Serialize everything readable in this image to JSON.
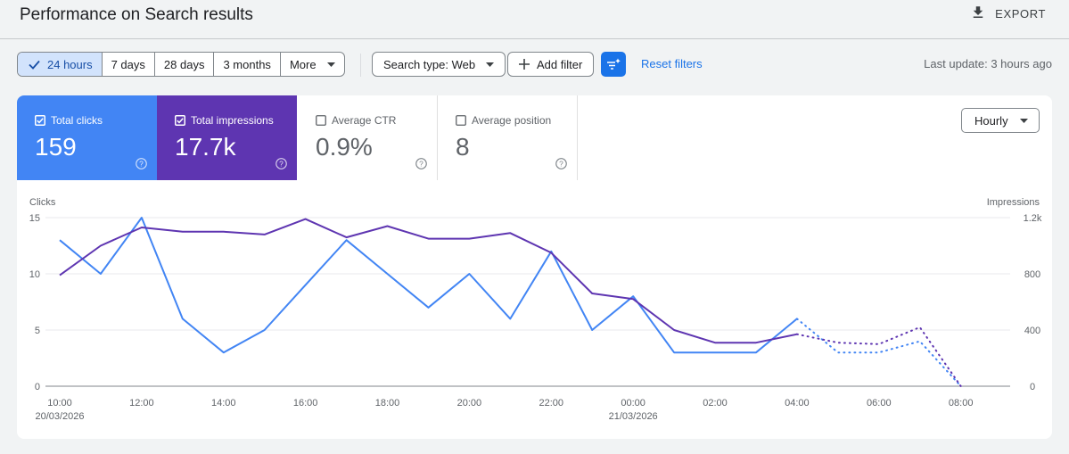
{
  "header": {
    "title": "Performance on Search results",
    "export_label": "EXPORT",
    "export_icon": "download-icon"
  },
  "toolbar": {
    "date_ranges": [
      "24 hours",
      "7 days",
      "28 days",
      "3 months",
      "More"
    ],
    "active_range": "24 hours",
    "search_type_label": "Search type: Web",
    "add_filter_label": "Add filter",
    "reset_filters_label": "Reset filters",
    "last_update": "Last update: 3 hours ago"
  },
  "metrics": {
    "clicks": {
      "label": "Total clicks",
      "value": "159",
      "checked": true,
      "color": "#4285f4"
    },
    "impressions": {
      "label": "Total impressions",
      "value": "17.7k",
      "checked": true,
      "color": "#5e35b1"
    },
    "ctr": {
      "label": "Average CTR",
      "value": "0.9%",
      "checked": false
    },
    "position": {
      "label": "Average position",
      "value": "8",
      "checked": false
    }
  },
  "granularity": "Hourly",
  "chart_data": {
    "type": "line",
    "left_axis": {
      "label": "Clicks",
      "ticks": [
        "0",
        "5",
        "10",
        "15"
      ],
      "range": [
        0,
        15
      ]
    },
    "right_axis": {
      "label": "Impressions",
      "ticks": [
        "0",
        "400",
        "800",
        "1.2k"
      ],
      "range": [
        0,
        1200
      ]
    },
    "x_labels": [
      "10:00",
      "12:00",
      "14:00",
      "16:00",
      "18:00",
      "20:00",
      "22:00",
      "00:00",
      "02:00",
      "04:00",
      "06:00",
      "08:00"
    ],
    "date_labels": [
      {
        "hour_index": 0,
        "text": "20/03/2026"
      },
      {
        "hour_index": 14,
        "text": "21/03/2026"
      }
    ],
    "grid": true,
    "series": [
      {
        "name": "Clicks",
        "axis": "left",
        "color": "#4285f4",
        "values": [
          13,
          10,
          15,
          6,
          3,
          5,
          9,
          13,
          10,
          7,
          10,
          6,
          12,
          5,
          8,
          3,
          3,
          3,
          6
        ],
        "projected_values": [
          6,
          3,
          3,
          4,
          0
        ]
      },
      {
        "name": "Impressions",
        "axis": "right",
        "color": "#5e35b1",
        "values": [
          790,
          1000,
          1130,
          1100,
          1100,
          1080,
          1190,
          1060,
          1140,
          1050,
          1050,
          1090,
          950,
          660,
          620,
          400,
          310,
          310,
          370
        ],
        "projected_values": [
          370,
          310,
          300,
          420,
          0
        ]
      }
    ]
  }
}
